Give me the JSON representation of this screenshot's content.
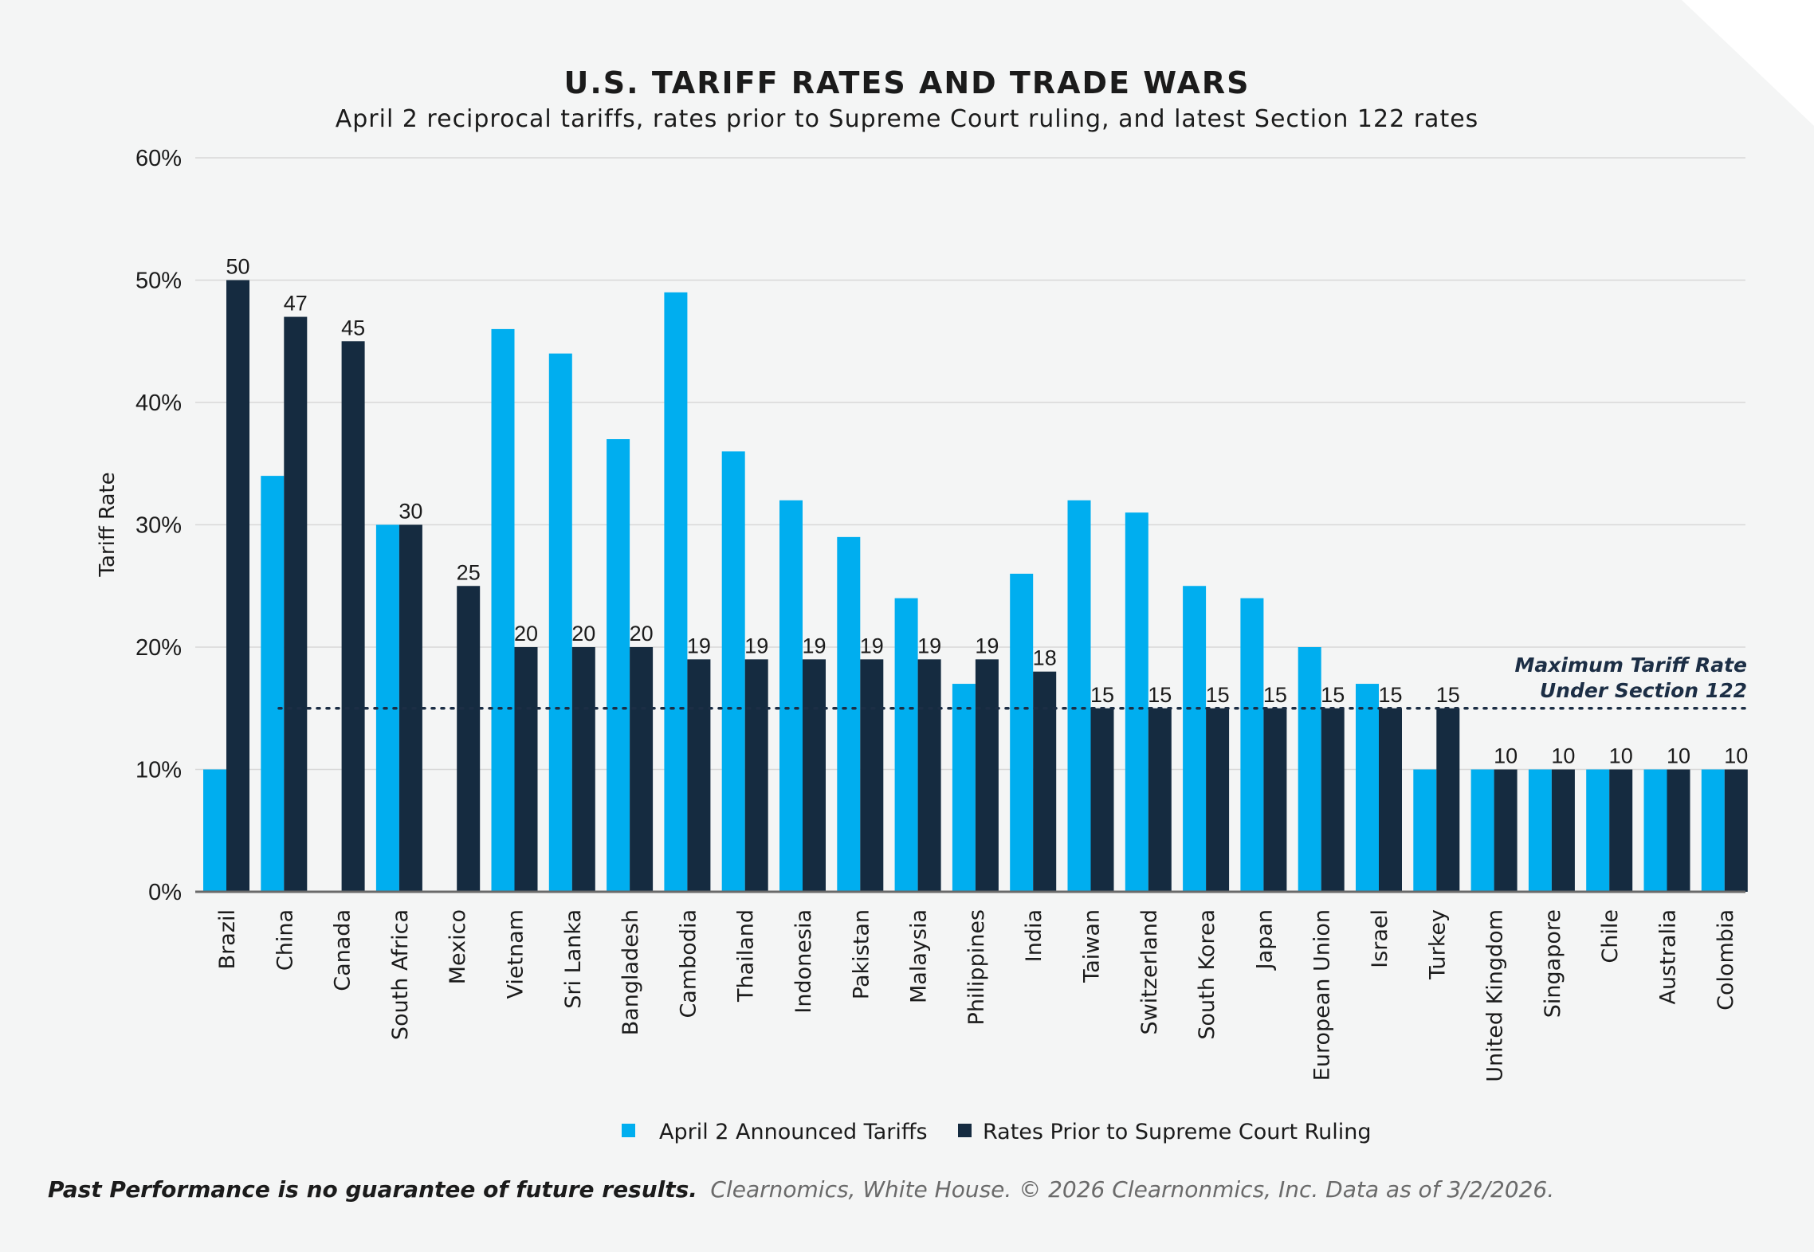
{
  "chart_data": {
    "type": "bar",
    "title": "U.S. TARIFF RATES AND TRADE WARS",
    "subtitle": "April 2 reciprocal tariffs, rates prior to Supreme Court ruling, and latest Section 122 rates",
    "ylabel": "Tariff Rate",
    "xlabel": "",
    "ylim": [
      0,
      60
    ],
    "yticks": [
      0,
      10,
      20,
      30,
      40,
      50,
      60
    ],
    "ytick_labels": [
      "0%",
      "10%",
      "20%",
      "30%",
      "40%",
      "50%",
      "60%"
    ],
    "grid": true,
    "categories": [
      "Brazil",
      "China",
      "Canada",
      "South Africa",
      "Mexico",
      "Vietnam",
      "Sri Lanka",
      "Bangladesh",
      "Cambodia",
      "Thailand",
      "Indonesia",
      "Pakistan",
      "Malaysia",
      "Philippines",
      "India",
      "Taiwan",
      "Switzerland",
      "South Korea",
      "Japan",
      "European Union",
      "Israel",
      "Turkey",
      "United Kingdom",
      "Singapore",
      "Chile",
      "Australia",
      "Colombia"
    ],
    "series": [
      {
        "name": "April 2 Announced Tariffs",
        "color": "#00aeef",
        "values": [
          10,
          34,
          0,
          30,
          0,
          46,
          44,
          37,
          49,
          36,
          32,
          29,
          24,
          17,
          26,
          32,
          31,
          25,
          24,
          20,
          17,
          10,
          10,
          10,
          10,
          10,
          10
        ]
      },
      {
        "name": "Rates Prior to Supreme Court Ruling",
        "color": "#152b40",
        "values": [
          50,
          47,
          45,
          30,
          25,
          20,
          20,
          20,
          19,
          19,
          19,
          19,
          19,
          19,
          18,
          15,
          15,
          15,
          15,
          15,
          15,
          15,
          10,
          10,
          10,
          10,
          10
        ],
        "data_labels": [
          "50",
          "47",
          "45",
          "30",
          "25",
          "20",
          "20",
          "20",
          "19",
          "19",
          "19",
          "19",
          "19",
          "19",
          "18",
          "15",
          "15",
          "15",
          "15",
          "15",
          "15",
          "15",
          "10",
          "10",
          "10",
          "10",
          "10"
        ]
      }
    ],
    "reference_line": {
      "value": 15,
      "style": "dotted",
      "label_line1": "Maximum Tariff Rate",
      "label_line2": "Under Section 122"
    },
    "legend": {
      "position": "bottom-center",
      "entries": [
        "April 2 Announced Tariffs",
        "Rates Prior to Supreme Court Ruling"
      ]
    }
  },
  "footer": {
    "disclaimer": "Past Performance is no guarantee of future results.",
    "source": "Clearnomics, White House. © 2026 Clearnonmics, Inc. Data as of 3/2/2026."
  },
  "colors": {
    "background": "#f4f5f5",
    "light_bar": "#00aeef",
    "dark_bar": "#152b40",
    "grid": "#d8d8d8"
  }
}
